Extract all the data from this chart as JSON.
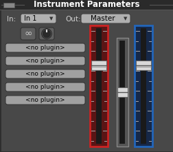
{
  "bg_color": "#3a3a3a",
  "title": "Instrument Parameters",
  "title_color": "#ffffff",
  "title_fontsize": 8.5,
  "panel_bg": "#484848",
  "panel_border": "#222222",
  "outer_bg": "#2e2e2e",
  "label_color": "#d0d0d0",
  "in_label": "In:",
  "out_label": "Out:",
  "in_dropdown": "In 1",
  "out_dropdown": "Master",
  "dropdown_bg": "#b0b0b0",
  "dropdown_text": "#000000",
  "plugin_buttons": [
    "<no plugin>",
    "<no plugin>",
    "<no plugin>",
    "<no plugin>",
    "<no plugin>"
  ],
  "plugin_btn_bg": "#a0a0a0",
  "plugin_btn_text": "#000000",
  "fader_red_border": "#cc2222",
  "fader_red_bg": "#5a1515",
  "fader_blue_border": "#2266bb",
  "fader_blue_bg": "#162848",
  "fader_gray_border": "#888888",
  "fader_gray_bg": "#555555",
  "fader_track_color": "#1a1a1a",
  "fader_handle_light": "#d8d8d8",
  "fader_handle_dark": "#a0a0a0",
  "fader_tick_color": "#aaaaaa",
  "knob_bg": "#555555",
  "knob_outer": "#111111",
  "knob_inner": "#2a2a2a",
  "knob_indicator": "#e0e0e0",
  "link_btn_bg": "#606060",
  "title_bar_top": "#1a1a1a",
  "title_bar_line": "#555555"
}
